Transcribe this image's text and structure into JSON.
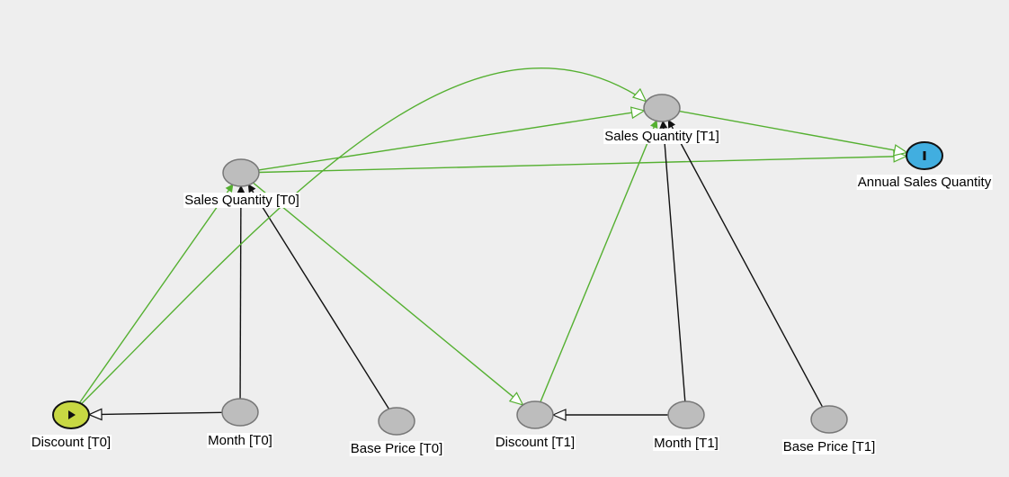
{
  "colors": {
    "background": "#eeeeee",
    "node_fill": "#bdbdbd",
    "decision_fill": "#c8d843",
    "utility_fill": "#41aee0",
    "temporal_edge": "#55b031",
    "causal_edge": "#111111"
  },
  "nodes": {
    "sq0": {
      "label": "Sales Quantity [T0]",
      "kind": "chance"
    },
    "sq1": {
      "label": "Sales Quantity [T1]",
      "kind": "chance"
    },
    "asq": {
      "label": "Annual Sales Quantity",
      "kind": "utility",
      "icon": "bar-icon"
    },
    "d0": {
      "label": "Discount [T0]",
      "kind": "decision",
      "icon": "play-icon"
    },
    "m0": {
      "label": "Month [T0]",
      "kind": "chance"
    },
    "bp0": {
      "label": "Base Price [T0]",
      "kind": "chance"
    },
    "d1": {
      "label": "Discount [T1]",
      "kind": "chance"
    },
    "m1": {
      "label": "Month [T1]",
      "kind": "chance"
    },
    "bp1": {
      "label": "Base Price [T1]",
      "kind": "chance"
    }
  },
  "edges": [
    {
      "from": "d0",
      "to": "sq0",
      "type": "causal-green"
    },
    {
      "from": "m0",
      "to": "sq0",
      "type": "causal"
    },
    {
      "from": "bp0",
      "to": "sq0",
      "type": "causal"
    },
    {
      "from": "m0",
      "to": "d0",
      "type": "causal-open"
    },
    {
      "from": "sq0",
      "to": "sq1",
      "type": "temporal"
    },
    {
      "from": "sq0",
      "to": "asq",
      "type": "temporal"
    },
    {
      "from": "sq1",
      "to": "asq",
      "type": "temporal"
    },
    {
      "from": "sq0",
      "to": "d1",
      "type": "temporal"
    },
    {
      "from": "d0",
      "to": "sq1",
      "type": "temporal-curve"
    },
    {
      "from": "d1",
      "to": "sq1",
      "type": "causal-green"
    },
    {
      "from": "m1",
      "to": "sq1",
      "type": "causal"
    },
    {
      "from": "bp1",
      "to": "sq1",
      "type": "causal"
    },
    {
      "from": "m1",
      "to": "d1",
      "type": "causal-open"
    }
  ]
}
